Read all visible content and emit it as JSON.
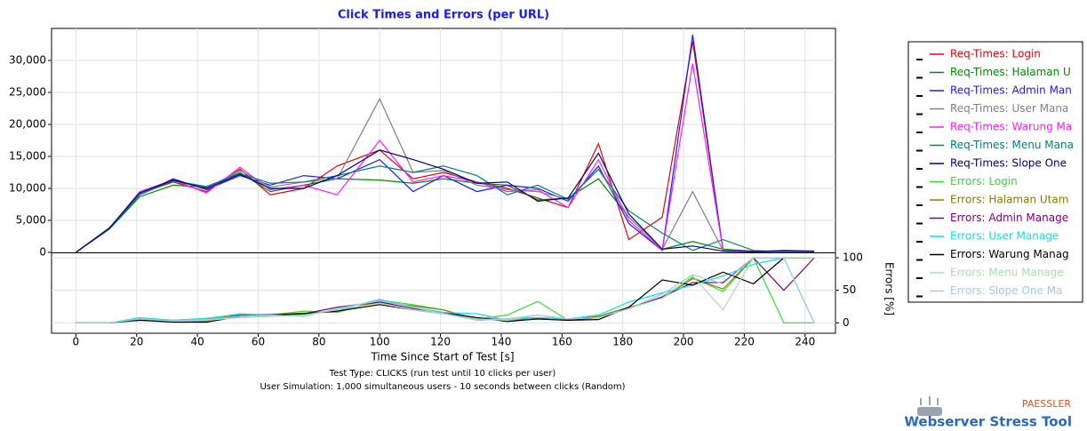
{
  "chart_data": {
    "type": "line",
    "title": "Click Times and Errors (per URL)",
    "subtitle": [
      "Test Type: CLICKS (run test until 10 clicks per user)",
      "User Simulation: 1,000 simultaneous users - 10 seconds between clicks (Random)"
    ],
    "x_label": "Time Since Start of Test [s]",
    "y2_label": "Errors [%]",
    "logo": {
      "brand": "PAESSLER",
      "product": "Webserver Stress Tool"
    },
    "x": [
      0,
      11,
      21,
      32,
      43,
      54,
      64,
      75,
      86,
      100,
      111,
      121,
      132,
      142,
      152,
      162,
      172,
      182,
      193,
      203,
      213,
      223,
      233,
      243
    ],
    "xlim": [
      -8,
      250
    ],
    "xticks": [
      0,
      20,
      40,
      60,
      80,
      100,
      120,
      140,
      160,
      180,
      200,
      220,
      240
    ],
    "ylim": [
      0,
      35000
    ],
    "yticks": [
      0,
      {
        "value": 5000,
        "label": "5,000"
      },
      {
        "value": 10000,
        "label": "10,000"
      },
      {
        "value": 15000,
        "label": "15,000"
      },
      {
        "value": 20000,
        "label": "20,000"
      },
      {
        "value": 25000,
        "label": "25,000"
      },
      {
        "value": 30000,
        "label": "30,000"
      }
    ],
    "y2lim": [
      -16,
      107
    ],
    "y2ticks": [
      0,
      50,
      100
    ],
    "grid": true,
    "legend": "right",
    "series": [
      {
        "name": "Req-Times: Login",
        "color": "#e8000b",
        "values": [
          0,
          3800,
          9200,
          11000,
          9500,
          13000,
          9000,
          10000,
          13500,
          16000,
          11500,
          12500,
          11000,
          10000,
          8500,
          7000,
          17000,
          2000,
          5500,
          33000,
          300,
          200,
          100,
          100
        ]
      },
      {
        "name": "Req-Times: Halaman U",
        "color": "#008a00",
        "values": [
          0,
          3600,
          8700,
          10500,
          10200,
          12500,
          9500,
          10500,
          11500,
          11300,
          10800,
          11500,
          10800,
          10500,
          8200,
          8500,
          11500,
          5500,
          500,
          1700,
          500,
          200,
          100,
          100
        ]
      },
      {
        "name": "Req-Times: Admin Man",
        "color": "#1a1aff",
        "values": [
          0,
          3700,
          9000,
          11500,
          9800,
          12000,
          10500,
          12000,
          11500,
          14500,
          9500,
          12000,
          9500,
          10500,
          10000,
          8000,
          13500,
          4500,
          300,
          34000,
          200,
          100,
          100,
          100
        ]
      },
      {
        "name": "Req-Times: User Mana",
        "color": "#808080",
        "values": [
          0,
          3700,
          9200,
          11200,
          10000,
          12800,
          10200,
          11000,
          11500,
          24000,
          12500,
          12800,
          10500,
          9800,
          9500,
          8300,
          13000,
          5500,
          500,
          9500,
          300,
          100,
          100,
          100
        ]
      },
      {
        "name": "Req-Times: Warung Ma",
        "color": "#ff1aff",
        "values": [
          0,
          3700,
          9500,
          11300,
          9300,
          13300,
          9800,
          10500,
          9000,
          17500,
          11000,
          12000,
          11000,
          9500,
          9800,
          7000,
          14500,
          5000,
          300,
          29500,
          300,
          100,
          100,
          100
        ]
      },
      {
        "name": "Req-Times: Menu Mana",
        "color": "#008080",
        "values": [
          0,
          3700,
          9000,
          11200,
          10300,
          12300,
          10800,
          11000,
          12000,
          13500,
          12500,
          13500,
          12000,
          9000,
          10500,
          8300,
          13000,
          6500,
          3000,
          300,
          2000,
          300,
          100,
          100
        ]
      },
      {
        "name": "Req-Times: Slope One",
        "color": "#000080",
        "values": [
          0,
          3800,
          9300,
          11300,
          10000,
          12200,
          10000,
          10000,
          12000,
          16000,
          14500,
          13000,
          10800,
          11000,
          8000,
          8500,
          15500,
          6000,
          500,
          1000,
          200,
          100,
          300,
          200
        ]
      },
      {
        "name": "Errors: Login",
        "color": "#33dd33",
        "axis": "y2",
        "values": [
          0,
          0,
          5,
          4,
          6,
          14,
          12,
          18,
          16,
          35,
          28,
          20,
          6,
          12,
          33,
          4,
          8,
          22,
          40,
          70,
          48,
          100,
          0,
          0
        ]
      },
      {
        "name": "Errors: Halaman Utam",
        "color": "#808000",
        "axis": "y2",
        "values": [
          0,
          0,
          4,
          3,
          5,
          12,
          13,
          15,
          18,
          32,
          26,
          20,
          4,
          6,
          8,
          6,
          10,
          24,
          38,
          68,
          52,
          100,
          100,
          100
        ]
      },
      {
        "name": "Errors: Admin Manage",
        "color": "#800080",
        "axis": "y2",
        "values": [
          0,
          0,
          6,
          3,
          3,
          12,
          12,
          14,
          24,
          32,
          22,
          16,
          8,
          4,
          6,
          4,
          8,
          22,
          40,
          62,
          62,
          100,
          50,
          100
        ]
      },
      {
        "name": "Errors: User Manage",
        "color": "#00e5e5",
        "axis": "y2",
        "values": [
          0,
          0,
          8,
          4,
          7,
          13,
          12,
          12,
          20,
          36,
          24,
          16,
          14,
          4,
          8,
          6,
          12,
          32,
          46,
          58,
          72,
          90,
          100,
          0
        ]
      },
      {
        "name": "Errors: Warung Manag",
        "color": "#000000",
        "axis": "y2",
        "values": [
          0,
          0,
          4,
          1,
          1,
          10,
          12,
          14,
          18,
          28,
          20,
          14,
          8,
          2,
          6,
          4,
          5,
          24,
          66,
          58,
          78,
          60,
          100,
          100
        ]
      },
      {
        "name": "Errors: Menu Manage",
        "color": "#a8e0a8",
        "axis": "y2",
        "values": [
          0,
          0,
          6,
          3,
          4,
          8,
          10,
          12,
          20,
          30,
          20,
          14,
          6,
          4,
          12,
          6,
          8,
          22,
          38,
          72,
          20,
          100,
          100,
          100
        ]
      },
      {
        "name": "Errors: Slope One Ma",
        "color": "#a6c8ea",
        "axis": "y2",
        "values": [
          0,
          0,
          6,
          3,
          5,
          10,
          12,
          10,
          22,
          34,
          24,
          14,
          4,
          6,
          12,
          6,
          8,
          22,
          44,
          74,
          60,
          100,
          100,
          0
        ]
      }
    ]
  }
}
